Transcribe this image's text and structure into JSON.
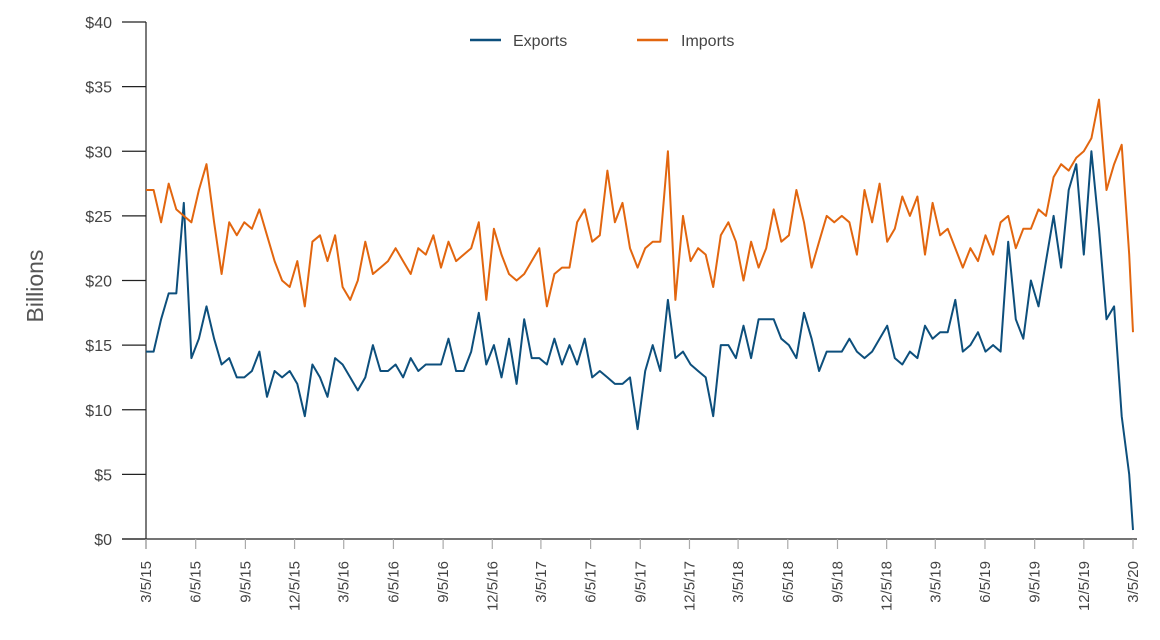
{
  "chart_data": {
    "type": "line",
    "title": "",
    "xlabel": "",
    "ylabel": "Billions",
    "ylim": [
      0,
      40
    ],
    "xlim": [
      "2015-03-05",
      "2020-03-05"
    ],
    "grid": false,
    "legend": "top-center",
    "y_ticks": [
      "$0",
      "$5",
      "$10",
      "$15",
      "$20",
      "$25",
      "$30",
      "$35",
      "$40"
    ],
    "y_tick_values": [
      0,
      5,
      10,
      15,
      20,
      25,
      30,
      35,
      40
    ],
    "x_ticks": [
      "3/5/15",
      "6/5/15",
      "9/5/15",
      "12/5/15",
      "3/5/16",
      "6/5/16",
      "9/5/16",
      "12/5/16",
      "3/5/17",
      "6/5/17",
      "9/5/17",
      "12/5/17",
      "3/5/18",
      "6/5/18",
      "9/5/18",
      "12/5/18",
      "3/5/19",
      "6/5/19",
      "9/5/19",
      "12/5/19",
      "3/5/20"
    ],
    "x_tick_dates": [
      "2015-03-05",
      "2015-06-05",
      "2015-09-05",
      "2015-12-05",
      "2016-03-05",
      "2016-06-05",
      "2016-09-05",
      "2016-12-05",
      "2017-03-05",
      "2017-06-05",
      "2017-09-05",
      "2017-12-05",
      "2018-03-05",
      "2018-06-05",
      "2018-09-05",
      "2018-12-05",
      "2019-03-05",
      "2019-06-05",
      "2019-09-05",
      "2019-12-05",
      "2020-03-05"
    ],
    "x": [
      "2015-03-05",
      "2015-03-19",
      "2015-04-02",
      "2015-04-16",
      "2015-04-30",
      "2015-05-14",
      "2015-05-28",
      "2015-06-11",
      "2015-06-25",
      "2015-07-09",
      "2015-07-23",
      "2015-08-06",
      "2015-08-20",
      "2015-09-03",
      "2015-09-17",
      "2015-10-01",
      "2015-10-15",
      "2015-10-29",
      "2015-11-12",
      "2015-11-26",
      "2015-12-10",
      "2015-12-24",
      "2016-01-07",
      "2016-01-21",
      "2016-02-04",
      "2016-02-18",
      "2016-03-03",
      "2016-03-17",
      "2016-03-31",
      "2016-04-14",
      "2016-04-28",
      "2016-05-12",
      "2016-05-26",
      "2016-06-09",
      "2016-06-23",
      "2016-07-07",
      "2016-07-21",
      "2016-08-04",
      "2016-08-18",
      "2016-09-01",
      "2016-09-15",
      "2016-09-29",
      "2016-10-13",
      "2016-10-27",
      "2016-11-10",
      "2016-11-24",
      "2016-12-08",
      "2016-12-22",
      "2017-01-05",
      "2017-01-19",
      "2017-02-02",
      "2017-02-16",
      "2017-03-02",
      "2017-03-16",
      "2017-03-30",
      "2017-04-13",
      "2017-04-27",
      "2017-05-11",
      "2017-05-25",
      "2017-06-08",
      "2017-06-22",
      "2017-07-06",
      "2017-07-20",
      "2017-08-03",
      "2017-08-17",
      "2017-08-31",
      "2017-09-14",
      "2017-09-28",
      "2017-10-12",
      "2017-10-26",
      "2017-11-09",
      "2017-11-23",
      "2017-12-07",
      "2017-12-21",
      "2018-01-04",
      "2018-01-18",
      "2018-02-01",
      "2018-02-15",
      "2018-03-01",
      "2018-03-15",
      "2018-03-29",
      "2018-04-12",
      "2018-04-26",
      "2018-05-10",
      "2018-05-24",
      "2018-06-07",
      "2018-06-21",
      "2018-07-05",
      "2018-07-19",
      "2018-08-02",
      "2018-08-16",
      "2018-08-30",
      "2018-09-13",
      "2018-09-27",
      "2018-10-11",
      "2018-10-25",
      "2018-11-08",
      "2018-11-22",
      "2018-12-06",
      "2018-12-20",
      "2019-01-03",
      "2019-01-17",
      "2019-01-31",
      "2019-02-14",
      "2019-02-28",
      "2019-03-14",
      "2019-03-28",
      "2019-04-11",
      "2019-04-25",
      "2019-05-09",
      "2019-05-23",
      "2019-06-06",
      "2019-06-20",
      "2019-07-04",
      "2019-07-18",
      "2019-08-01",
      "2019-08-15",
      "2019-08-29",
      "2019-09-12",
      "2019-09-26",
      "2019-10-10",
      "2019-10-24",
      "2019-11-07",
      "2019-11-21",
      "2019-12-05",
      "2019-12-19",
      "2020-01-02",
      "2020-01-16",
      "2020-01-30",
      "2020-02-13",
      "2020-02-27",
      "2020-03-05"
    ],
    "series": [
      {
        "name": "Exports",
        "color": "#0d4f7c",
        "values": [
          14.5,
          14.5,
          17,
          19,
          19,
          26,
          14,
          15.5,
          18,
          15.5,
          13.5,
          14,
          12.5,
          12.5,
          13,
          14.5,
          11,
          13,
          12.5,
          13,
          12,
          9.5,
          13.5,
          12.5,
          11,
          14,
          13.5,
          12.5,
          11.5,
          12.5,
          15,
          13,
          13,
          13.5,
          12.5,
          14,
          13,
          13.5,
          13.5,
          13.5,
          15.5,
          13,
          13,
          14.5,
          17.5,
          13.5,
          15,
          12.5,
          15.5,
          12,
          17,
          14,
          14,
          13.5,
          15.5,
          13.5,
          15,
          13.5,
          15.5,
          12.5,
          13,
          12.5,
          12,
          12,
          12.5,
          8.5,
          13,
          15,
          13,
          18.5,
          14,
          14.5,
          13.5,
          13,
          12.5,
          9.5,
          15,
          15,
          14,
          16.5,
          14,
          17,
          17,
          17,
          15.5,
          15,
          14,
          17.5,
          15.5,
          13,
          14.5,
          14.5,
          14.5,
          15.5,
          14.5,
          14,
          14.5,
          15.5,
          16.5,
          14,
          13.5,
          14.5,
          14,
          16.5,
          15.5,
          16,
          16,
          18.5,
          14.5,
          15,
          16,
          14.5,
          15,
          14.5,
          23,
          17,
          15.5,
          20,
          18,
          21.5,
          25,
          21,
          27,
          29,
          22,
          30,
          24,
          17,
          18,
          9.5,
          5,
          0.7
        ]
      },
      {
        "name": "Imports",
        "color": "#e2660f",
        "values": [
          27,
          27,
          24.5,
          27.5,
          25.5,
          25,
          24.5,
          27,
          29,
          24.5,
          20.5,
          24.5,
          23.5,
          24.5,
          24,
          25.5,
          23.5,
          21.5,
          20,
          19.5,
          21.5,
          18,
          23,
          23.5,
          21.5,
          23.5,
          19.5,
          18.5,
          20,
          23,
          20.5,
          21,
          21.5,
          22.5,
          21.5,
          20.5,
          22.5,
          22,
          23.5,
          21,
          23,
          21.5,
          22,
          22.5,
          24.5,
          18.5,
          24,
          22,
          20.5,
          20,
          20.5,
          21.5,
          22.5,
          18,
          20.5,
          21,
          21,
          24.5,
          25.5,
          23,
          23.5,
          28.5,
          24.5,
          26,
          22.5,
          21,
          22.5,
          23,
          23,
          30,
          18.5,
          25,
          21.5,
          22.5,
          22,
          19.5,
          23.5,
          24.5,
          23,
          20,
          23,
          21,
          22.5,
          25.5,
          23,
          23.5,
          27,
          24.5,
          21,
          23,
          25,
          24.5,
          25,
          24.5,
          22,
          27,
          24.5,
          27.5,
          23,
          24,
          26.5,
          25,
          26.5,
          22,
          26,
          23.5,
          24,
          22.5,
          21,
          22.5,
          21.5,
          23.5,
          22,
          24.5,
          25,
          22.5,
          24,
          24,
          25.5,
          25,
          28,
          29,
          28.5,
          29.5,
          30,
          31,
          34,
          27,
          29,
          30.5,
          22,
          16
        ]
      }
    ]
  }
}
